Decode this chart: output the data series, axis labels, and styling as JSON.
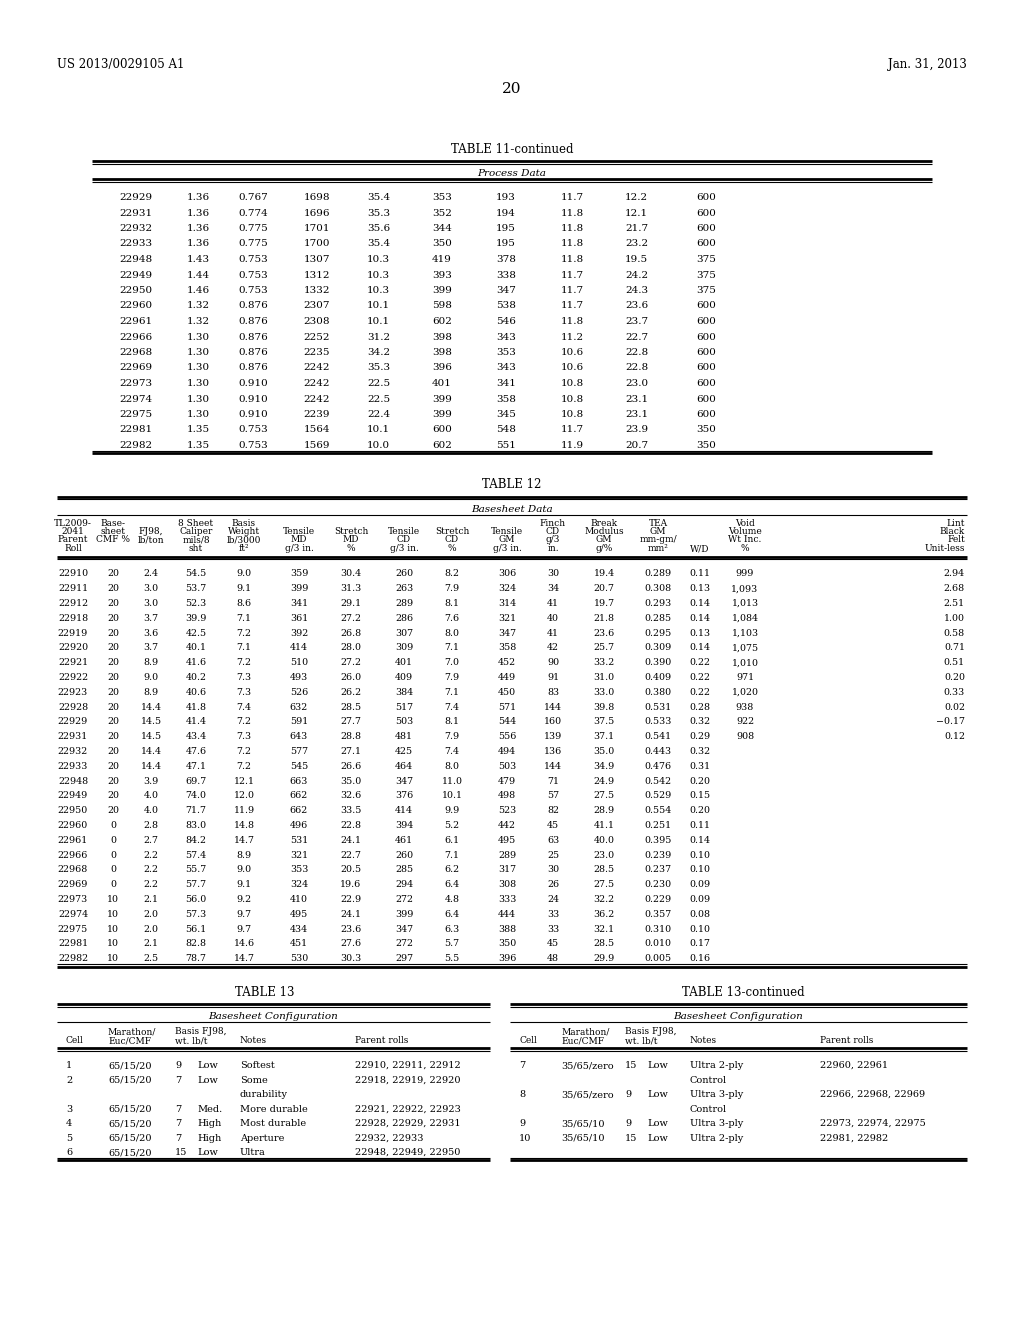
{
  "patent_left": "US 2013/0029105 A1",
  "patent_right": "Jan. 31, 2013",
  "page_number": "20",
  "table11_title": "TABLE 11-continued",
  "table11_subtitle": "Process Data",
  "table11_data": [
    [
      "22929",
      "1.36",
      "0.767",
      "1698",
      "35.4",
      "353",
      "193",
      "11.7",
      "12.2",
      "600"
    ],
    [
      "22931",
      "1.36",
      "0.774",
      "1696",
      "35.3",
      "352",
      "194",
      "11.8",
      "12.1",
      "600"
    ],
    [
      "22932",
      "1.36",
      "0.775",
      "1701",
      "35.6",
      "344",
      "195",
      "11.8",
      "21.7",
      "600"
    ],
    [
      "22933",
      "1.36",
      "0.775",
      "1700",
      "35.4",
      "350",
      "195",
      "11.8",
      "23.2",
      "600"
    ],
    [
      "22948",
      "1.43",
      "0.753",
      "1307",
      "10.3",
      "419",
      "378",
      "11.8",
      "19.5",
      "375"
    ],
    [
      "22949",
      "1.44",
      "0.753",
      "1312",
      "10.3",
      "393",
      "338",
      "11.7",
      "24.2",
      "375"
    ],
    [
      "22950",
      "1.46",
      "0.753",
      "1332",
      "10.3",
      "399",
      "347",
      "11.7",
      "24.3",
      "375"
    ],
    [
      "22960",
      "1.32",
      "0.876",
      "2307",
      "10.1",
      "598",
      "538",
      "11.7",
      "23.6",
      "600"
    ],
    [
      "22961",
      "1.32",
      "0.876",
      "2308",
      "10.1",
      "602",
      "546",
      "11.8",
      "23.7",
      "600"
    ],
    [
      "22966",
      "1.30",
      "0.876",
      "2252",
      "31.2",
      "398",
      "343",
      "11.2",
      "22.7",
      "600"
    ],
    [
      "22968",
      "1.30",
      "0.876",
      "2235",
      "34.2",
      "398",
      "353",
      "10.6",
      "22.8",
      "600"
    ],
    [
      "22969",
      "1.30",
      "0.876",
      "2242",
      "35.3",
      "396",
      "343",
      "10.6",
      "22.8",
      "600"
    ],
    [
      "22973",
      "1.30",
      "0.910",
      "2242",
      "22.5",
      "401",
      "341",
      "10.8",
      "23.0",
      "600"
    ],
    [
      "22974",
      "1.30",
      "0.910",
      "2242",
      "22.5",
      "399",
      "358",
      "10.8",
      "23.1",
      "600"
    ],
    [
      "22975",
      "1.30",
      "0.910",
      "2239",
      "22.4",
      "399",
      "345",
      "10.8",
      "23.1",
      "600"
    ],
    [
      "22981",
      "1.35",
      "0.753",
      "1564",
      "10.1",
      "600",
      "548",
      "11.7",
      "23.9",
      "350"
    ],
    [
      "22982",
      "1.35",
      "0.753",
      "1569",
      "10.0",
      "602",
      "551",
      "11.9",
      "20.7",
      "350"
    ]
  ],
  "table12_title": "TABLE 12",
  "table12_subtitle": "Basesheet Data",
  "table12_col_headers": [
    [
      "TL2009-",
      "Base-",
      "",
      "8 Sheet",
      "Basis",
      "",
      "",
      "",
      "",
      "",
      "Finch",
      "Break",
      "TEA",
      "",
      "Void",
      "Lint"
    ],
    [
      "2041",
      "sheet",
      "FJ98,",
      "Caliper",
      "Weight",
      "Tensile",
      "Stretch",
      "Tensile",
      "Stretch",
      "Tensile",
      "CD",
      "Modulus",
      "GM",
      "",
      "Volume",
      "Black"
    ],
    [
      "Parent",
      "CMF %",
      "lb/ton",
      "mils/8",
      "lb/3000",
      "MD",
      "MD",
      "CD",
      "CD",
      "GM",
      "g/3",
      "GM",
      "mm-gm/",
      "",
      "Wt Inc.",
      "Felt"
    ],
    [
      "Roll",
      "",
      "",
      "sht",
      "ft²",
      "g/3 in.",
      "%",
      "g/3 in.",
      "%",
      "g/3 in.",
      "in.",
      "g/%",
      "mm²",
      "W/D",
      "%",
      "Unit-less"
    ]
  ],
  "table12_data": [
    [
      "22910",
      "20",
      "2.4",
      "54.5",
      "9.0",
      "359",
      "30.4",
      "260",
      "8.2",
      "306",
      "30",
      "19.4",
      "0.289",
      "0.11",
      "999",
      "2.94"
    ],
    [
      "22911",
      "20",
      "3.0",
      "53.7",
      "9.1",
      "399",
      "31.3",
      "263",
      "7.9",
      "324",
      "34",
      "20.7",
      "0.308",
      "0.13",
      "1,093",
      "2.68"
    ],
    [
      "22912",
      "20",
      "3.0",
      "52.3",
      "8.6",
      "341",
      "29.1",
      "289",
      "8.1",
      "314",
      "41",
      "19.7",
      "0.293",
      "0.14",
      "1,013",
      "2.51"
    ],
    [
      "22918",
      "20",
      "3.7",
      "39.9",
      "7.1",
      "361",
      "27.2",
      "286",
      "7.6",
      "321",
      "40",
      "21.8",
      "0.285",
      "0.14",
      "1,084",
      "1.00"
    ],
    [
      "22919",
      "20",
      "3.6",
      "42.5",
      "7.2",
      "392",
      "26.8",
      "307",
      "8.0",
      "347",
      "41",
      "23.6",
      "0.295",
      "0.13",
      "1,103",
      "0.58"
    ],
    [
      "22920",
      "20",
      "3.7",
      "40.1",
      "7.1",
      "414",
      "28.0",
      "309",
      "7.1",
      "358",
      "42",
      "25.7",
      "0.309",
      "0.14",
      "1,075",
      "0.71"
    ],
    [
      "22921",
      "20",
      "8.9",
      "41.6",
      "7.2",
      "510",
      "27.2",
      "401",
      "7.0",
      "452",
      "90",
      "33.2",
      "0.390",
      "0.22",
      "1,010",
      "0.51"
    ],
    [
      "22922",
      "20",
      "9.0",
      "40.2",
      "7.3",
      "493",
      "26.0",
      "409",
      "7.9",
      "449",
      "91",
      "31.0",
      "0.409",
      "0.22",
      "971",
      "0.20"
    ],
    [
      "22923",
      "20",
      "8.9",
      "40.6",
      "7.3",
      "526",
      "26.2",
      "384",
      "7.1",
      "450",
      "83",
      "33.0",
      "0.380",
      "0.22",
      "1,020",
      "0.33"
    ],
    [
      "22928",
      "20",
      "14.4",
      "41.8",
      "7.4",
      "632",
      "28.5",
      "517",
      "7.4",
      "571",
      "144",
      "39.8",
      "0.531",
      "0.28",
      "938",
      "0.02"
    ],
    [
      "22929",
      "20",
      "14.5",
      "41.4",
      "7.2",
      "591",
      "27.7",
      "503",
      "8.1",
      "544",
      "160",
      "37.5",
      "0.533",
      "0.32",
      "922",
      "−0.17"
    ],
    [
      "22931",
      "20",
      "14.5",
      "43.4",
      "7.3",
      "643",
      "28.8",
      "481",
      "7.9",
      "556",
      "139",
      "37.1",
      "0.541",
      "0.29",
      "908",
      "0.12"
    ],
    [
      "22932",
      "20",
      "14.4",
      "47.6",
      "7.2",
      "577",
      "27.1",
      "425",
      "7.4",
      "494",
      "136",
      "35.0",
      "0.443",
      "0.32",
      "",
      ""
    ],
    [
      "22933",
      "20",
      "14.4",
      "47.1",
      "7.2",
      "545",
      "26.6",
      "464",
      "8.0",
      "503",
      "144",
      "34.9",
      "0.476",
      "0.31",
      "",
      ""
    ],
    [
      "22948",
      "20",
      "3.9",
      "69.7",
      "12.1",
      "663",
      "35.0",
      "347",
      "11.0",
      "479",
      "71",
      "24.9",
      "0.542",
      "0.20",
      "",
      ""
    ],
    [
      "22949",
      "20",
      "4.0",
      "74.0",
      "12.0",
      "662",
      "32.6",
      "376",
      "10.1",
      "498",
      "57",
      "27.5",
      "0.529",
      "0.15",
      "",
      ""
    ],
    [
      "22950",
      "20",
      "4.0",
      "71.7",
      "11.9",
      "662",
      "33.5",
      "414",
      "9.9",
      "523",
      "82",
      "28.9",
      "0.554",
      "0.20",
      "",
      ""
    ],
    [
      "22960",
      "0",
      "2.8",
      "83.0",
      "14.8",
      "496",
      "22.8",
      "394",
      "5.2",
      "442",
      "45",
      "41.1",
      "0.251",
      "0.11",
      "",
      ""
    ],
    [
      "22961",
      "0",
      "2.7",
      "84.2",
      "14.7",
      "531",
      "24.1",
      "461",
      "6.1",
      "495",
      "63",
      "40.0",
      "0.395",
      "0.14",
      "",
      ""
    ],
    [
      "22966",
      "0",
      "2.2",
      "57.4",
      "8.9",
      "321",
      "22.7",
      "260",
      "7.1",
      "289",
      "25",
      "23.0",
      "0.239",
      "0.10",
      "",
      ""
    ],
    [
      "22968",
      "0",
      "2.2",
      "55.7",
      "9.0",
      "353",
      "20.5",
      "285",
      "6.2",
      "317",
      "30",
      "28.5",
      "0.237",
      "0.10",
      "",
      ""
    ],
    [
      "22969",
      "0",
      "2.2",
      "57.7",
      "9.1",
      "324",
      "19.6",
      "294",
      "6.4",
      "308",
      "26",
      "27.5",
      "0.230",
      "0.09",
      "",
      ""
    ],
    [
      "22973",
      "10",
      "2.1",
      "56.0",
      "9.2",
      "410",
      "22.9",
      "272",
      "4.8",
      "333",
      "24",
      "32.2",
      "0.229",
      "0.09",
      "",
      ""
    ],
    [
      "22974",
      "10",
      "2.0",
      "57.3",
      "9.7",
      "495",
      "24.1",
      "399",
      "6.4",
      "444",
      "33",
      "36.2",
      "0.357",
      "0.08",
      "",
      ""
    ],
    [
      "22975",
      "10",
      "2.0",
      "56.1",
      "9.7",
      "434",
      "23.6",
      "347",
      "6.3",
      "388",
      "33",
      "32.1",
      "0.310",
      "0.10",
      "",
      ""
    ],
    [
      "22981",
      "10",
      "2.1",
      "82.8",
      "14.6",
      "451",
      "27.6",
      "272",
      "5.7",
      "350",
      "45",
      "28.5",
      "0.010",
      "0.17",
      "",
      ""
    ],
    [
      "22982",
      "10",
      "2.5",
      "78.7",
      "14.7",
      "530",
      "30.3",
      "297",
      "5.5",
      "396",
      "48",
      "29.9",
      "0.005",
      "0.16",
      "",
      ""
    ]
  ],
  "table13_title": "TABLE 13",
  "table13_cont_title": "TABLE 13-continued",
  "table13_subtitle": "Basesheet Configuration",
  "table13_left_data": [
    [
      "1",
      "65/15/20",
      "9",
      "Low",
      "Softest",
      "22910, 22911, 22912"
    ],
    [
      "2",
      "65/15/20",
      "7",
      "Low",
      "Some",
      "22918, 22919, 22920"
    ],
    [
      "",
      "",
      "",
      "",
      "durability",
      ""
    ],
    [
      "3",
      "65/15/20",
      "7",
      "Med.",
      "More durable",
      "22921, 22922, 22923"
    ],
    [
      "4",
      "65/15/20",
      "7",
      "High",
      "Most durable",
      "22928, 22929, 22931"
    ],
    [
      "5",
      "65/15/20",
      "7",
      "High",
      "Aperture",
      "22932, 22933"
    ],
    [
      "6",
      "65/15/20",
      "15",
      "Low",
      "Ultra",
      "22948, 22949, 22950"
    ]
  ],
  "table13_right_data": [
    [
      "7",
      "35/65/zero",
      "15",
      "Low",
      "Ultra 2-ply",
      "22960, 22961"
    ],
    [
      "",
      "",
      "",
      "",
      "Control",
      ""
    ],
    [
      "8",
      "35/65/zero",
      "9",
      "Low",
      "Ultra 3-ply",
      "22966, 22968, 22969"
    ],
    [
      "",
      "",
      "",
      "",
      "Control",
      ""
    ],
    [
      "9",
      "35/65/10",
      "9",
      "Low",
      "Ultra 3-ply",
      "22973, 22974, 22975"
    ],
    [
      "10",
      "35/65/10",
      "15",
      "Low",
      "Ultra 2-ply",
      "22981, 22982"
    ]
  ]
}
